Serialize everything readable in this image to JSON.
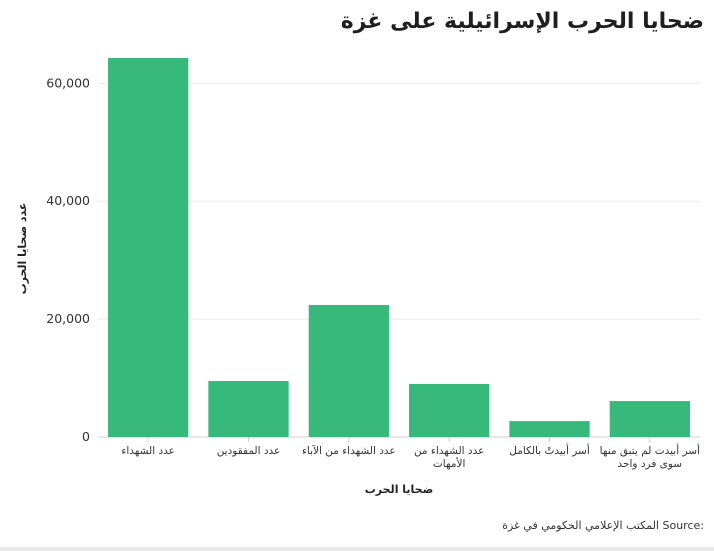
{
  "title": "ضحايا الحرب الإسرائيلية على غزة",
  "source": {
    "label": "Source:",
    "value": "المكتب الإعلامي الحكومي في غزة"
  },
  "colors": {
    "bar": "#36b97a",
    "grid": "#ebebeb",
    "axis": "#cfcfcf"
  },
  "chart_data": {
    "type": "bar",
    "categories": [
      [
        "عدد الشهداء"
      ],
      [
        "عدد المفقودين"
      ],
      [
        "عدد الشهداء من الآباء"
      ],
      [
        "عدد الشهداء من",
        "الأمهات"
      ],
      [
        "أسر أبيدتْ بالكامل"
      ],
      [
        "أسر أبيدت لم يتبق منها",
        "سوى فرد واحد"
      ]
    ],
    "values": [
      64300,
      9500,
      22400,
      9000,
      2700,
      6100
    ],
    "xlabel": "ضحايا الحرب",
    "ylabel": "عدد ضحايا الحرب",
    "ylim": [
      0,
      66000
    ],
    "yticks": [
      0,
      20000,
      40000,
      60000
    ],
    "ytick_labels": [
      "0",
      "20,000",
      "40,000",
      "60,000"
    ],
    "grid": true,
    "legend": "none"
  }
}
